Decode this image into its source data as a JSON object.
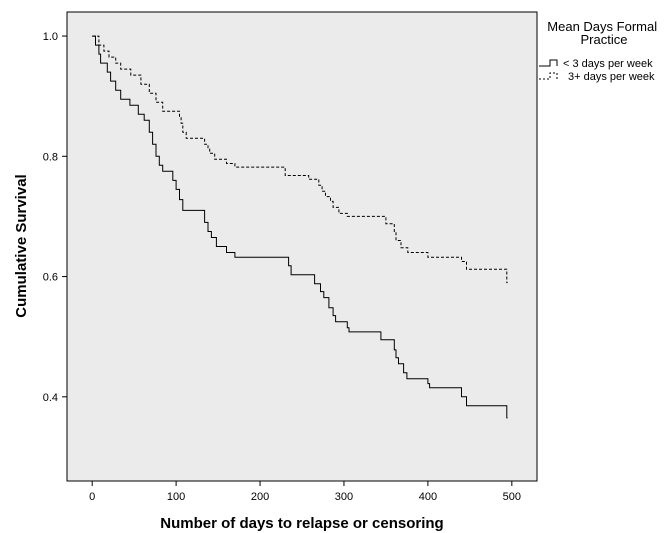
{
  "chart_data": {
    "type": "line",
    "step": true,
    "xlabel": "Number of days to relapse or censoring",
    "ylabel": "Cumulative Survival",
    "xlim": [
      -30,
      530
    ],
    "ylim": [
      0.26,
      1.04
    ],
    "x_ticks": [
      0,
      100,
      200,
      300,
      400,
      500
    ],
    "y_ticks": [
      0.4,
      0.6,
      0.8,
      1.0
    ],
    "x_tick_labels": [
      "0",
      "100",
      "200",
      "300",
      "400",
      "500"
    ],
    "y_tick_labels": [
      "0.4",
      "0.6",
      "0.8",
      "1.0"
    ],
    "plot_background": "#ebebeb",
    "grid": false,
    "legend": {
      "title": "Mean Days Formal Practice",
      "position": "right-top"
    },
    "series": [
      {
        "name": "< 3 days per week",
        "style": "solid",
        "color": "#000000",
        "points": [
          [
            0,
            1.0
          ],
          [
            4,
            0.985
          ],
          [
            8,
            0.97
          ],
          [
            10,
            0.955
          ],
          [
            18,
            0.94
          ],
          [
            22,
            0.925
          ],
          [
            28,
            0.91
          ],
          [
            34,
            0.895
          ],
          [
            45,
            0.885
          ],
          [
            55,
            0.87
          ],
          [
            62,
            0.86
          ],
          [
            68,
            0.84
          ],
          [
            72,
            0.82
          ],
          [
            76,
            0.8
          ],
          [
            80,
            0.785
          ],
          [
            84,
            0.775
          ],
          [
            96,
            0.76
          ],
          [
            100,
            0.745
          ],
          [
            104,
            0.728
          ],
          [
            108,
            0.71
          ],
          [
            134,
            0.69
          ],
          [
            138,
            0.675
          ],
          [
            142,
            0.665
          ],
          [
            148,
            0.65
          ],
          [
            160,
            0.64
          ],
          [
            170,
            0.632
          ],
          [
            234,
            0.618
          ],
          [
            237,
            0.603
          ],
          [
            265,
            0.588
          ],
          [
            272,
            0.575
          ],
          [
            276,
            0.565
          ],
          [
            282,
            0.548
          ],
          [
            287,
            0.535
          ],
          [
            290,
            0.525
          ],
          [
            304,
            0.515
          ],
          [
            306,
            0.508
          ],
          [
            344,
            0.495
          ],
          [
            360,
            0.478
          ],
          [
            362,
            0.465
          ],
          [
            365,
            0.455
          ],
          [
            371,
            0.44
          ],
          [
            375,
            0.43
          ],
          [
            400,
            0.422
          ],
          [
            402,
            0.415
          ],
          [
            440,
            0.4
          ],
          [
            446,
            0.385
          ],
          [
            494,
            0.365
          ]
        ],
        "end": 495
      },
      {
        "name": "3+ days per week",
        "style": "dashed",
        "color": "#000000",
        "points": [
          [
            0,
            1.0
          ],
          [
            8,
            0.985
          ],
          [
            14,
            0.975
          ],
          [
            20,
            0.965
          ],
          [
            28,
            0.955
          ],
          [
            34,
            0.945
          ],
          [
            46,
            0.935
          ],
          [
            58,
            0.92
          ],
          [
            68,
            0.905
          ],
          [
            76,
            0.89
          ],
          [
            84,
            0.875
          ],
          [
            104,
            0.865
          ],
          [
            106,
            0.855
          ],
          [
            108,
            0.84
          ],
          [
            112,
            0.83
          ],
          [
            134,
            0.82
          ],
          [
            138,
            0.812
          ],
          [
            140,
            0.805
          ],
          [
            146,
            0.795
          ],
          [
            160,
            0.788
          ],
          [
            170,
            0.782
          ],
          [
            230,
            0.768
          ],
          [
            258,
            0.762
          ],
          [
            270,
            0.752
          ],
          [
            274,
            0.742
          ],
          [
            278,
            0.733
          ],
          [
            284,
            0.725
          ],
          [
            287,
            0.715
          ],
          [
            294,
            0.705
          ],
          [
            304,
            0.7
          ],
          [
            350,
            0.688
          ],
          [
            360,
            0.675
          ],
          [
            362,
            0.66
          ],
          [
            368,
            0.648
          ],
          [
            376,
            0.64
          ],
          [
            400,
            0.632
          ],
          [
            440,
            0.625
          ],
          [
            446,
            0.612
          ],
          [
            494,
            0.59
          ]
        ],
        "end": 495
      }
    ]
  }
}
